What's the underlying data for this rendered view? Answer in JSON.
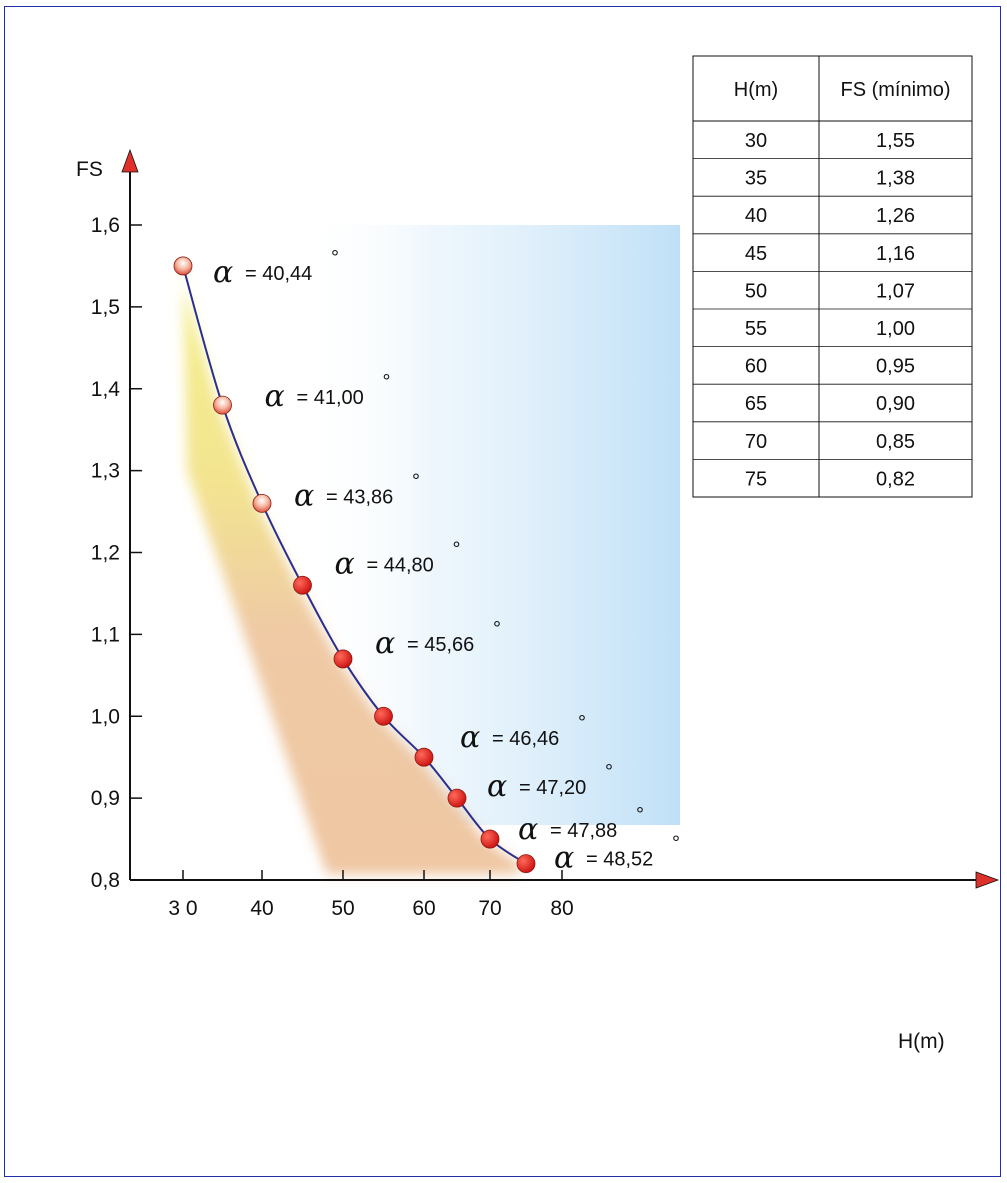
{
  "chart_data": {
    "type": "line",
    "xlabel": "H(m)",
    "ylabel": "FS",
    "xlim": [
      30,
      80
    ],
    "ylim": [
      0.8,
      1.6
    ],
    "x_ticks": [
      "3 0",
      "40",
      "50",
      "60",
      "70",
      "80"
    ],
    "y_ticks": [
      "0,8",
      "0,9",
      "1,0",
      "1,1",
      "1,2",
      "1,3",
      "1,4",
      "1,5",
      "1,6"
    ],
    "series": [
      {
        "x": [
          30,
          35,
          40,
          45,
          50,
          55,
          60,
          65,
          70,
          75
        ],
        "y": [
          1.55,
          1.38,
          1.26,
          1.16,
          1.07,
          1.0,
          0.95,
          0.9,
          0.85,
          0.82
        ],
        "marker_color": "#e31b1b",
        "line_color": "#2a2f8f"
      }
    ],
    "annotations": [
      {
        "symbol": "α",
        "text": "= 40,44",
        "degree": "°"
      },
      {
        "symbol": "α",
        "text": "= 41,00",
        "degree": "°"
      },
      {
        "symbol": "α",
        "text": "= 43,86",
        "degree": "°"
      },
      {
        "symbol": "α",
        "text": "= 44,80",
        "degree": "°"
      },
      {
        "symbol": "α",
        "text": "= 45,66",
        "degree": "°"
      },
      {
        "symbol": "α",
        "text": "= 46,46",
        "degree": "°"
      },
      {
        "symbol": "α",
        "text": "= 47,20",
        "degree": "°"
      },
      {
        "symbol": "α",
        "text": "= 47,88",
        "degree": "°"
      },
      {
        "symbol": "α",
        "text": "= 48,52",
        "degree": "°"
      }
    ],
    "table": {
      "headers": [
        "H(m)",
        "FS (mínimo)"
      ],
      "rows": [
        [
          "30",
          "1,55"
        ],
        [
          "35",
          "1,38"
        ],
        [
          "40",
          "1,26"
        ],
        [
          "45",
          "1,16"
        ],
        [
          "50",
          "1,07"
        ],
        [
          "55",
          "1,00"
        ],
        [
          "60",
          "0,95"
        ],
        [
          "65",
          "0,90"
        ],
        [
          "70",
          "0,85"
        ],
        [
          "75",
          "0,82"
        ]
      ]
    },
    "colors": {
      "frame": "#1f2fa8",
      "axis_arrow": "#e0302a",
      "shade_yellow": "#f1ee7a",
      "shade_orange": "#eec39d",
      "shade_blue": "#bfe0f7"
    }
  }
}
